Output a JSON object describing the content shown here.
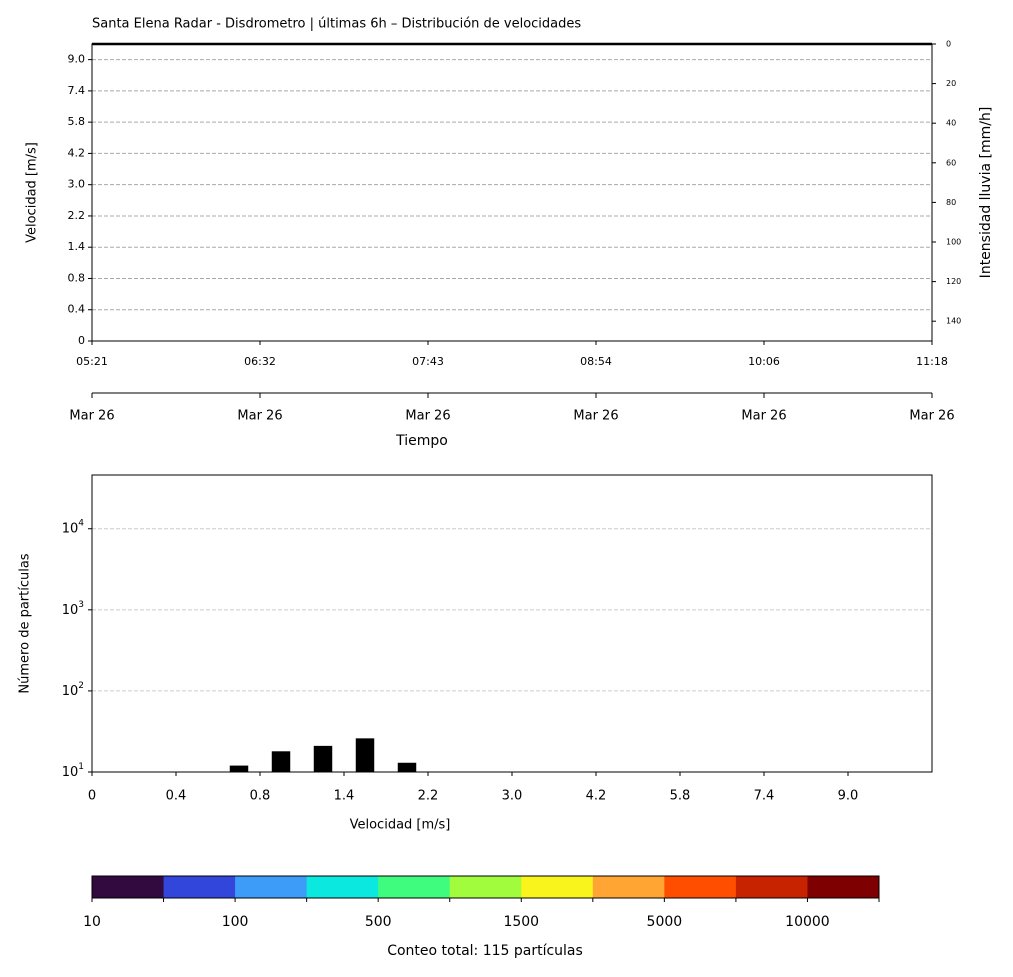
{
  "chart_data": [
    {
      "type": "heatmap-time",
      "title": "Santa Elena Radar - Disdrometro | últimas 6h – Distribución de velocidades",
      "ylabel": "Velocidad [m/s]",
      "y2label": "Intensidad lluvia [mm/h]",
      "xlabel": "Tiempo",
      "time_labels": [
        "05:21",
        "06:32",
        "07:43",
        "08:54",
        "10:06",
        "11:18"
      ],
      "date_labels": [
        "Mar 26",
        "Mar 26",
        "Mar 26",
        "Mar 26",
        "Mar 26",
        "Mar 26"
      ],
      "ylim": [
        0,
        9.5
      ],
      "yticks": [
        {
          "value": 0,
          "label": "0"
        },
        {
          "value": 1,
          "label": "0.4"
        },
        {
          "value": 2,
          "label": "0.8"
        },
        {
          "value": 3,
          "label": "1.4"
        },
        {
          "value": 4,
          "label": "2.2"
        },
        {
          "value": 5,
          "label": "3.0"
        },
        {
          "value": 6,
          "label": "4.2"
        },
        {
          "value": 7,
          "label": "5.8"
        },
        {
          "value": 8,
          "label": "7.4"
        },
        {
          "value": 9,
          "label": "9.0"
        }
      ],
      "y2lim": [
        150,
        0
      ],
      "y2ticks": [
        0,
        20,
        40,
        60,
        80,
        100,
        120,
        140
      ],
      "grid": true
    },
    {
      "type": "bar",
      "ylabel": "Número de partículas",
      "xlabel": "Velocidad [m/s]",
      "x": [
        1.75,
        2.25,
        2.75,
        3.25,
        3.75
      ],
      "values": [
        12,
        18,
        21,
        26,
        13
      ],
      "color": "#000000",
      "log_scale": true,
      "xlim": [
        0,
        10
      ],
      "xticks": [
        {
          "value": 0,
          "label": "0"
        },
        {
          "value": 1,
          "label": "0.4"
        },
        {
          "value": 2,
          "label": "0.8"
        },
        {
          "value": 3,
          "label": "1.4"
        },
        {
          "value": 4,
          "label": "2.2"
        },
        {
          "value": 5,
          "label": "3.0"
        },
        {
          "value": 6,
          "label": "4.2"
        },
        {
          "value": 7,
          "label": "5.8"
        },
        {
          "value": 8,
          "label": "7.4"
        },
        {
          "value": 9,
          "label": "9.0"
        }
      ],
      "ylim": [
        10,
        46000
      ],
      "yticks": [
        {
          "value": 10,
          "label": "10",
          "exponent": "1"
        },
        {
          "value": 100,
          "label": "10",
          "exponent": "2"
        },
        {
          "value": 1000,
          "label": "10",
          "exponent": "3"
        },
        {
          "value": 10000,
          "label": "10",
          "exponent": "4"
        }
      ],
      "grid": true
    },
    {
      "type": "colorbar",
      "label": "Conteo total: 115 partículas",
      "colors": [
        "#330a40",
        "#3346dc",
        "#3d9cf8",
        "#0ae8e0",
        "#3ffc7e",
        "#a0fc3c",
        "#f8f41c",
        "#ffa533",
        "#ff4e00",
        "#c72300",
        "#7f0000"
      ],
      "ticks": [
        {
          "value": 0,
          "label": "10"
        },
        {
          "value": 2,
          "label": "100"
        },
        {
          "value": 4,
          "label": "500"
        },
        {
          "value": 6,
          "label": "1500"
        },
        {
          "value": 8,
          "label": "5000"
        },
        {
          "value": 10,
          "label": "10000"
        }
      ]
    }
  ]
}
